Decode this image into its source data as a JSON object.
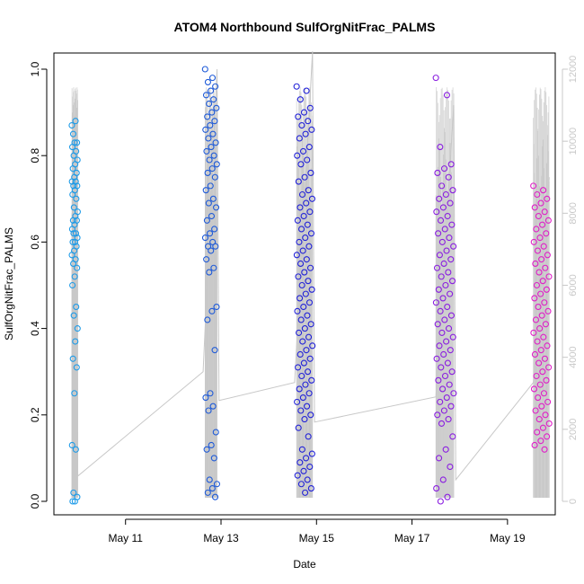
{
  "chart_data": {
    "type": "scatter",
    "title": "ATOM4 Northbound SulfOrgNitFrac_PALMS",
    "xlabel": "Date",
    "ylabel": "SulfOrgNitFrac_PALMS",
    "xlim": [
      "2017-05-09T12:00",
      "2017-05-20T00:00"
    ],
    "ylim": [
      0,
      1
    ],
    "y2lim": [
      0,
      12000
    ],
    "x_ticks": [
      {
        "value": "2017-05-11T00:00",
        "label": "May 11"
      },
      {
        "value": "2017-05-13T00:00",
        "label": "May 13"
      },
      {
        "value": "2017-05-15T00:00",
        "label": "May 15"
      },
      {
        "value": "2017-05-17T00:00",
        "label": "May 17"
      },
      {
        "value": "2017-05-19T00:00",
        "label": "May 19"
      }
    ],
    "y_ticks": [
      "0.0",
      "0.2",
      "0.4",
      "0.6",
      "0.8",
      "1.0"
    ],
    "y2_ticks": [
      "0",
      "2000",
      "4000",
      "6000",
      "8000",
      "10000",
      "12000"
    ],
    "grid": false,
    "series": [
      {
        "color": "#1e9be8",
        "x_range": [
          "2017-05-09T21:00",
          "2017-05-10T00:00"
        ],
        "y_values": [
          0.87,
          0.88,
          0.85,
          0.83,
          0.83,
          0.82,
          0.81,
          0.8,
          0.79,
          0.78,
          0.77,
          0.76,
          0.75,
          0.74,
          0.74,
          0.73,
          0.73,
          0.72,
          0.71,
          0.7,
          0.68,
          0.67,
          0.66,
          0.65,
          0.65,
          0.64,
          0.63,
          0.62,
          0.62,
          0.61,
          0.6,
          0.6,
          0.59,
          0.58,
          0.57,
          0.56,
          0.55,
          0.54,
          0.52,
          0.5,
          0.45,
          0.43,
          0.4,
          0.37,
          0.33,
          0.31,
          0.25,
          0.13,
          0.12,
          0.02,
          0.01,
          0.0,
          0.0
        ]
      },
      {
        "color": "#1e5ad8",
        "x_range": [
          "2017-05-12T16:00",
          "2017-05-12T22:00"
        ],
        "y_values": [
          1.0,
          0.98,
          0.97,
          0.96,
          0.95,
          0.94,
          0.93,
          0.92,
          0.91,
          0.9,
          0.89,
          0.88,
          0.87,
          0.86,
          0.85,
          0.84,
          0.83,
          0.82,
          0.81,
          0.8,
          0.79,
          0.78,
          0.77,
          0.76,
          0.75,
          0.73,
          0.72,
          0.7,
          0.69,
          0.68,
          0.66,
          0.65,
          0.63,
          0.62,
          0.61,
          0.6,
          0.59,
          0.59,
          0.58,
          0.56,
          0.54,
          0.53,
          0.45,
          0.44,
          0.42,
          0.35,
          0.25,
          0.24,
          0.22,
          0.21,
          0.16,
          0.13,
          0.12,
          0.1,
          0.05,
          0.04,
          0.03,
          0.02,
          0.01
        ]
      },
      {
        "color": "#2222d8",
        "x_range": [
          "2017-05-14T14:00",
          "2017-05-14T22:00"
        ],
        "y_values": [
          0.96,
          0.95,
          0.93,
          0.91,
          0.9,
          0.89,
          0.88,
          0.87,
          0.86,
          0.85,
          0.84,
          0.82,
          0.81,
          0.8,
          0.79,
          0.78,
          0.76,
          0.75,
          0.74,
          0.72,
          0.71,
          0.7,
          0.69,
          0.68,
          0.67,
          0.66,
          0.65,
          0.64,
          0.63,
          0.62,
          0.61,
          0.6,
          0.59,
          0.58,
          0.57,
          0.56,
          0.55,
          0.54,
          0.53,
          0.52,
          0.51,
          0.5,
          0.49,
          0.48,
          0.47,
          0.46,
          0.45,
          0.44,
          0.43,
          0.42,
          0.41,
          0.4,
          0.39,
          0.38,
          0.37,
          0.36,
          0.35,
          0.34,
          0.33,
          0.32,
          0.31,
          0.3,
          0.29,
          0.28,
          0.27,
          0.26,
          0.25,
          0.24,
          0.23,
          0.22,
          0.21,
          0.2,
          0.19,
          0.17,
          0.15,
          0.12,
          0.11,
          0.1,
          0.09,
          0.08,
          0.07,
          0.06,
          0.05,
          0.04,
          0.03,
          0.02
        ]
      },
      {
        "color": "#8a1ee0",
        "x_range": [
          "2017-05-17T12:00",
          "2017-05-17T21:00"
        ],
        "y_values": [
          0.98,
          0.94,
          0.82,
          0.78,
          0.77,
          0.76,
          0.75,
          0.73,
          0.72,
          0.71,
          0.7,
          0.69,
          0.68,
          0.67,
          0.66,
          0.65,
          0.64,
          0.63,
          0.62,
          0.61,
          0.6,
          0.59,
          0.58,
          0.57,
          0.56,
          0.55,
          0.54,
          0.53,
          0.52,
          0.51,
          0.5,
          0.49,
          0.48,
          0.47,
          0.46,
          0.45,
          0.44,
          0.43,
          0.42,
          0.41,
          0.4,
          0.39,
          0.38,
          0.37,
          0.36,
          0.35,
          0.34,
          0.33,
          0.32,
          0.31,
          0.3,
          0.29,
          0.28,
          0.27,
          0.26,
          0.25,
          0.24,
          0.23,
          0.22,
          0.21,
          0.2,
          0.19,
          0.18,
          0.15,
          0.12,
          0.1,
          0.08,
          0.05,
          0.03,
          0.01,
          0.0
        ]
      },
      {
        "color": "#e01ec8",
        "x_range": [
          "2017-05-19T13:00",
          "2017-05-19T21:00"
        ],
        "y_values": [
          0.73,
          0.72,
          0.71,
          0.7,
          0.69,
          0.68,
          0.67,
          0.66,
          0.65,
          0.64,
          0.63,
          0.62,
          0.61,
          0.6,
          0.59,
          0.58,
          0.57,
          0.56,
          0.55,
          0.54,
          0.53,
          0.52,
          0.51,
          0.5,
          0.49,
          0.48,
          0.47,
          0.46,
          0.45,
          0.44,
          0.43,
          0.42,
          0.41,
          0.4,
          0.39,
          0.38,
          0.37,
          0.36,
          0.35,
          0.34,
          0.33,
          0.32,
          0.31,
          0.3,
          0.29,
          0.28,
          0.27,
          0.26,
          0.25,
          0.24,
          0.23,
          0.22,
          0.21,
          0.2,
          0.19,
          0.18,
          0.17,
          0.16,
          0.15,
          0.14,
          0.13,
          0.12
        ]
      }
    ],
    "altitude_line": {
      "color": "#c8c8c8",
      "points": [
        {
          "x": "2017-05-09T21:00",
          "y2": 3700
        },
        {
          "x": "2017-05-09T23:00",
          "y2": 11400
        },
        {
          "x": "2017-05-10T00:00",
          "y2": 700
        },
        {
          "x": "2017-05-12T15:00",
          "y2": 3600
        },
        {
          "x": "2017-05-12T22:00",
          "y2": 12000
        },
        {
          "x": "2017-05-12T23:00",
          "y2": 2800
        },
        {
          "x": "2017-05-14T13:00",
          "y2": 3300
        },
        {
          "x": "2017-05-14T22:00",
          "y2": 12500
        },
        {
          "x": "2017-05-14T23:00",
          "y2": 2200
        },
        {
          "x": "2017-05-17T12:00",
          "y2": 2900
        },
        {
          "x": "2017-05-17T21:00",
          "y2": 11000
        },
        {
          "x": "2017-05-17T22:00",
          "y2": 600
        },
        {
          "x": "2017-05-19T13:00",
          "y2": 3300
        },
        {
          "x": "2017-05-19T21:00",
          "y2": 9000
        }
      ]
    }
  }
}
